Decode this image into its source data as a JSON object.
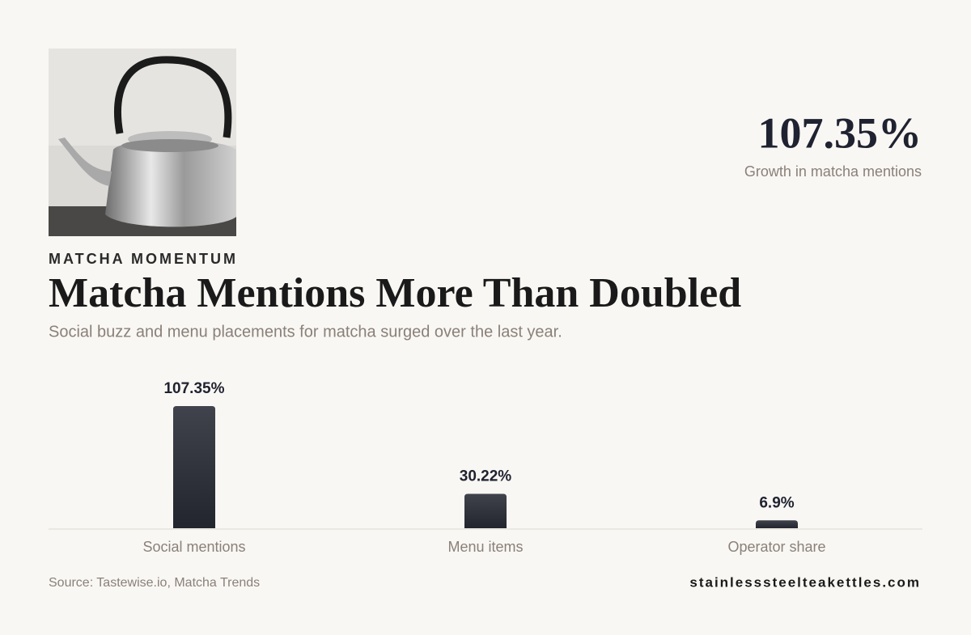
{
  "chart_data": {
    "type": "bar",
    "kicker": "MATCHA MOMENTUM",
    "title": "Matcha Mentions More Than Doubled",
    "subtitle": "Social buzz and menu placements for matcha surged over the last year.",
    "headline_stat": {
      "value": "107.35%",
      "label": "Growth in matcha mentions"
    },
    "categories": [
      "Social mentions",
      "Menu items",
      "Operator share"
    ],
    "values": [
      107.35,
      30.22,
      6.9
    ],
    "value_labels": [
      "107.35%",
      "30.22%",
      "6.9%"
    ],
    "color": "#2c2f38",
    "source": "Source: Tastewise.io, Matcha Trends",
    "site": "stainlesssteelteakettles.com"
  }
}
